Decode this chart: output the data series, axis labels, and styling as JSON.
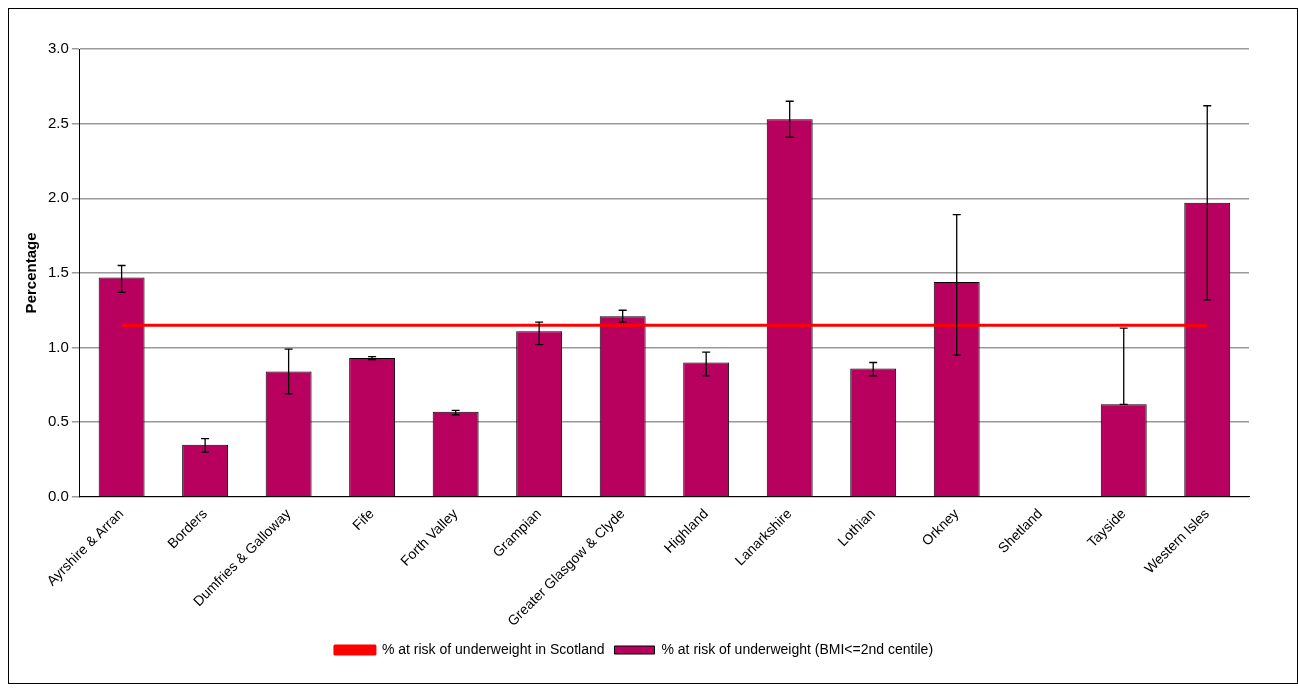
{
  "chart_data": {
    "type": "bar",
    "ylabel": "Percentage",
    "categories": [
      "Ayrshire & Arran",
      "Borders",
      "Dumfries & Galloway",
      "Fife",
      "Forth Valley",
      "Grampian",
      "Greater Glasgow & Clyde",
      "Highland",
      "Lanarkshire",
      "Lothian",
      "Orkney",
      "Shetland",
      "Tayside",
      "Western Isles"
    ],
    "series": [
      {
        "name": "% at risk of underweight (BMI<=2nd centile)",
        "color": "#b8005f",
        "values": [
          1.47,
          0.35,
          0.84,
          0.93,
          0.57,
          1.11,
          1.21,
          0.9,
          2.53,
          0.86,
          1.44,
          0,
          0.62,
          1.97
        ],
        "errors": [
          [
            1.37,
            1.55
          ],
          [
            0.3,
            0.39
          ],
          [
            0.69,
            0.99
          ],
          [
            0.92,
            0.94
          ],
          [
            0.55,
            0.58
          ],
          [
            1.02,
            1.17
          ],
          [
            1.17,
            1.25
          ],
          [
            0.81,
            0.97
          ],
          [
            2.41,
            2.65
          ],
          [
            0.81,
            0.9
          ],
          [
            0.95,
            1.89
          ],
          null,
          [
            0.62,
            1.13
          ],
          [
            1.32,
            2.62
          ]
        ]
      },
      {
        "name": "% at risk of underweight in Scotland",
        "type": "line",
        "color": "#ff0000",
        "values": [
          1.15,
          1.15,
          1.15,
          1.15,
          1.15,
          1.15,
          1.15,
          1.15,
          1.15,
          1.15,
          1.15,
          1.15,
          1.15,
          1.15
        ],
        "marker": "none"
      }
    ],
    "ylim": [
      0,
      3
    ],
    "yticks": [
      {
        "value": 0,
        "label": "0.0"
      },
      {
        "value": 0.5,
        "label": "0.5"
      },
      {
        "value": 1,
        "label": "1.0"
      },
      {
        "value": 1.5,
        "label": "1.5"
      },
      {
        "value": 2,
        "label": "2.0"
      },
      {
        "value": 2.5,
        "label": "2.5"
      },
      {
        "value": 3,
        "label": "3.0"
      }
    ],
    "grid": "y",
    "legend": "bottom"
  }
}
